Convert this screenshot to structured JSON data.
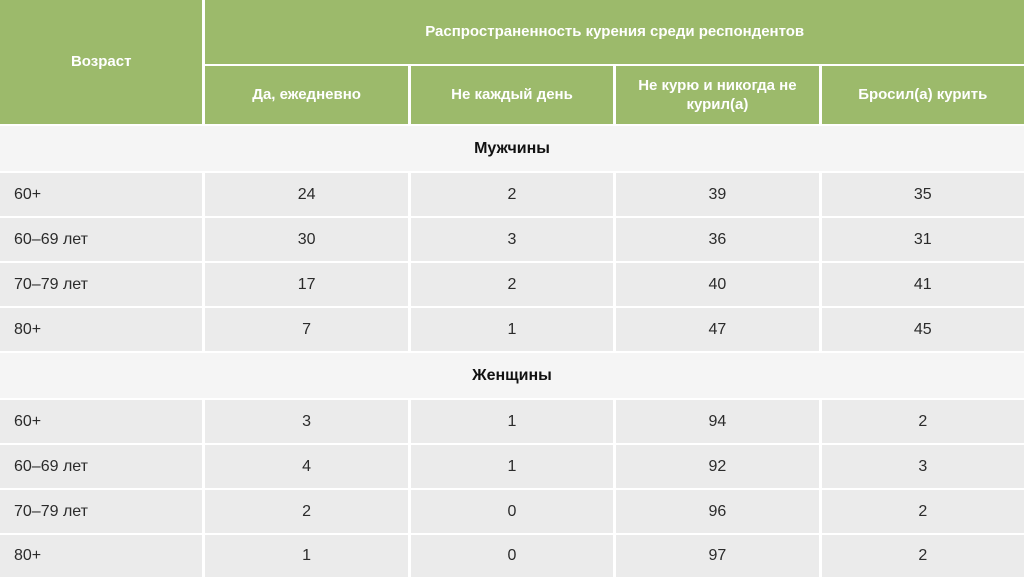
{
  "chart_data": {
    "type": "table",
    "title": "Распространенность курения среди респондентов",
    "row_header": "Возраст",
    "columns": [
      "Да, ежедневно",
      "Не каждый день",
      "Не курю и никогда не курил(а)",
      "Бросил(а) курить"
    ],
    "sections": [
      {
        "name": "Мужчины",
        "rows": [
          {
            "age": "60+",
            "values": [
              "24",
              "2",
              "39",
              "35"
            ]
          },
          {
            "age": "60–69 лет",
            "values": [
              "30",
              "3",
              "36",
              "31"
            ]
          },
          {
            "age": "70–79 лет",
            "values": [
              "17",
              "2",
              "40",
              "41"
            ]
          },
          {
            "age": "80+",
            "values": [
              "7",
              "1",
              "47",
              "45"
            ]
          }
        ]
      },
      {
        "name": "Женщины",
        "rows": [
          {
            "age": "60+",
            "values": [
              "3",
              "1",
              "94",
              "2"
            ]
          },
          {
            "age": "60–69 лет",
            "values": [
              "4",
              "1",
              "92",
              "3"
            ]
          },
          {
            "age": "70–79 лет",
            "values": [
              "2",
              "0",
              "96",
              "2"
            ]
          },
          {
            "age": "80+",
            "values": [
              "1",
              "0",
              "97",
              "2"
            ]
          }
        ]
      }
    ],
    "layout": {
      "header_background": "#9cba6b",
      "header_text_color": "#ffffff",
      "row_background": "#ebebeb",
      "section_background": "#f5f5f5",
      "body_text_color": "#2b2b2b"
    }
  }
}
